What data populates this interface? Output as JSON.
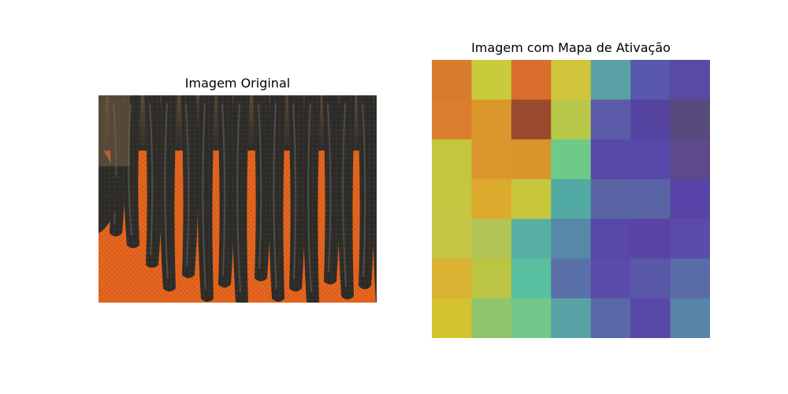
{
  "figure": {
    "left_title": "Imagem Original",
    "right_title": "Imagem com Mapa de Ativação"
  },
  "original_image": {
    "subject": "close-up photo of black dreadlocks hair strands against an orange background",
    "colors": {
      "background": "#e8641c",
      "hair": "#2e2c29",
      "highlight": "#6d6a62",
      "top_edge": "#8a6a3e"
    }
  },
  "activation_map": {
    "rows": 7,
    "cols": 7,
    "cells": [
      [
        "#d97b2e",
        "#c9cb3b",
        "#db6e2c",
        "#cfc43a",
        "#5aa1a5",
        "#5858ac",
        "#5a4aa6"
      ],
      [
        "#da7e2e",
        "#dc972c",
        "#9a4a2c",
        "#bac84a",
        "#5a5aa9",
        "#5444a0",
        "#584a7a"
      ],
      [
        "#c4c63e",
        "#dc962e",
        "#d8952c",
        "#6fca8a",
        "#5a48a8",
        "#5648a8",
        "#5c4a8a"
      ],
      [
        "#c4c640",
        "#dcaa2c",
        "#c8c63c",
        "#52aaa4",
        "#5a64a4",
        "#5a64a4",
        "#5844a8"
      ],
      [
        "#c2c644",
        "#b2c454",
        "#58b0a4",
        "#5888a8",
        "#5848a8",
        "#5844a6",
        "#5a4ca8"
      ],
      [
        "#dab232",
        "#bcc444",
        "#58c0a0",
        "#5a70a8",
        "#5a4ca8",
        "#5a58a8",
        "#5a6ca8"
      ],
      [
        "#d4c22e",
        "#90c46c",
        "#72c88a",
        "#58a2a6",
        "#5a68a8",
        "#5a48a8",
        "#5a84a8"
      ]
    ]
  }
}
